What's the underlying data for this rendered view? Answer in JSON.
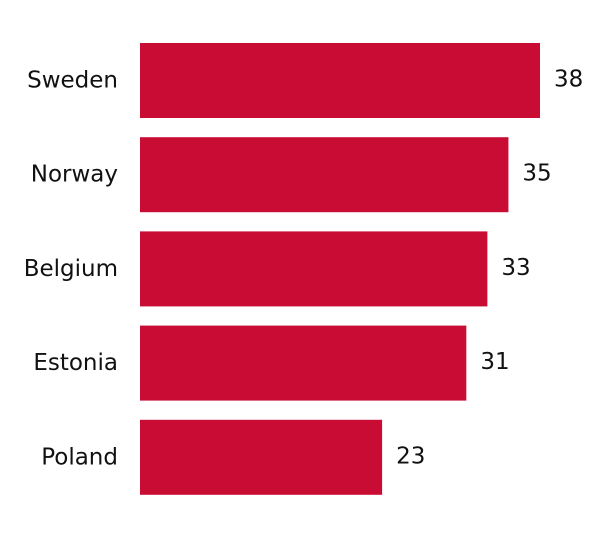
{
  "chart_data": {
    "type": "bar",
    "orientation": "horizontal",
    "title": "",
    "xlabel": "",
    "ylabel": "",
    "categories": [
      "Sweden",
      "Norway",
      "Belgium",
      "Estonia",
      "Poland"
    ],
    "values": [
      38,
      35,
      33,
      31,
      23
    ],
    "data_labels": [
      "38",
      "35",
      "33",
      "31",
      "23"
    ],
    "xlim": [
      0,
      38
    ],
    "grid": false,
    "legend": "none",
    "bar_color": "#c80c34"
  }
}
